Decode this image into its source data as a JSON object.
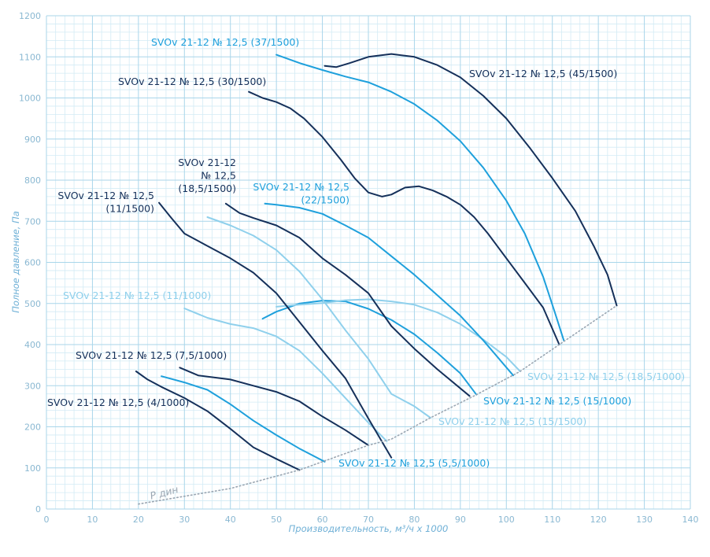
{
  "chart_data": {
    "type": "line",
    "x_label": "Производительность, м³/ч х 1000",
    "y_label": "Полное давление, Па",
    "xlim": [
      0,
      140
    ],
    "xticks": [
      0,
      10,
      20,
      30,
      40,
      50,
      60,
      70,
      80,
      90,
      100,
      110,
      120,
      130,
      140
    ],
    "ylim": [
      0,
      1200
    ],
    "yticks": [
      0,
      100,
      200,
      300,
      400,
      500,
      600,
      700,
      800,
      900,
      1000,
      1100,
      1200
    ],
    "grid": true,
    "series": [
      {
        "name": "SVOv 21-12 № 12,5 (4/1000)",
        "color": "#15305a",
        "x": [
          19.5,
          22,
          25,
          30,
          35,
          40,
          45,
          50,
          55
        ],
        "values": [
          335,
          315,
          297,
          270,
          238,
          195,
          150,
          122,
          95
        ]
      },
      {
        "name": "SVOv 21-12 № 12,5 (5,5/1000)",
        "color": "#1ea0dc",
        "x": [
          25,
          30,
          35,
          40,
          45,
          50,
          55,
          60.5
        ],
        "values": [
          323,
          308,
          290,
          255,
          215,
          180,
          147,
          115
        ]
      },
      {
        "name": "SVOv 21-12 № 12,5 (7,5/1000)",
        "color": "#15305a",
        "x": [
          29,
          33,
          40,
          45,
          50,
          55,
          60,
          65,
          70
        ],
        "values": [
          344,
          325,
          315,
          300,
          285,
          262,
          225,
          192,
          155
        ]
      },
      {
        "name": "SVOv 21-12 № 12,5 (11/1000)",
        "color": "#8fd0ec",
        "x": [
          30,
          35,
          40,
          45,
          50,
          55,
          60,
          65,
          70,
          74
        ],
        "values": [
          488,
          465,
          450,
          440,
          420,
          385,
          330,
          270,
          210,
          165
        ]
      },
      {
        "name": "SVOv 21-12 № 12,5 (15/1000)",
        "color": "#1ea0dc",
        "x": [
          47,
          50,
          55,
          60,
          65,
          70,
          75,
          80,
          85,
          90,
          93.5
        ],
        "values": [
          463,
          480,
          500,
          507,
          505,
          487,
          460,
          425,
          380,
          330,
          278
        ]
      },
      {
        "name": "SVOv 21-12 № 12,5 (18,5/1000)",
        "color": "#8fd0ec",
        "x": [
          50,
          55,
          60,
          65,
          70,
          75,
          80,
          85,
          90,
          95,
          100,
          103
        ],
        "values": [
          492,
          497,
          501,
          508,
          510,
          505,
          497,
          478,
          450,
          412,
          370,
          335
        ]
      },
      {
        "name": [
          "SVOv 21-12 № 12,5",
          "(11/1500)"
        ],
        "color": "#15305a",
        "x": [
          24.5,
          27,
          30,
          35,
          40,
          45,
          50,
          55,
          60,
          65,
          70,
          75
        ],
        "values": [
          745,
          710,
          670,
          640,
          610,
          575,
          525,
          455,
          385,
          318,
          220,
          125
        ]
      },
      {
        "name": "SVOv 21-12 № 12,5 (15/1500)",
        "color": "#8fd0ec",
        "x": [
          35,
          40,
          45,
          50,
          55,
          60,
          65,
          70,
          75,
          80,
          83.5
        ],
        "values": [
          710,
          690,
          665,
          630,
          578,
          510,
          435,
          365,
          280,
          250,
          222
        ]
      },
      {
        "name": [
          "SVOv 21-12",
          "№ 12,5",
          "(18,5/1500)"
        ],
        "color": "#15305a",
        "x": [
          39,
          42,
          45,
          50,
          55,
          60,
          65,
          70,
          75,
          80,
          85,
          92
        ],
        "values": [
          743,
          720,
          708,
          690,
          660,
          610,
          570,
          525,
          445,
          390,
          340,
          275
        ]
      },
      {
        "name": [
          "SVOv 21-12 № 12,5",
          "(22/1500)"
        ],
        "color": "#1ea0dc",
        "x": [
          47.5,
          50,
          55,
          60,
          65,
          70,
          75,
          80,
          85,
          90,
          95,
          101.5
        ],
        "values": [
          743,
          740,
          733,
          718,
          690,
          660,
          615,
          570,
          520,
          470,
          410,
          325
        ]
      },
      {
        "name": "SVOv 21-12 № 12,5 (30/1500)",
        "color": "#15305a",
        "x": [
          44,
          47,
          50,
          53,
          56,
          60,
          64,
          67,
          70,
          73,
          75,
          78,
          81,
          84,
          87,
          90,
          93,
          96,
          100,
          104,
          108,
          111.5
        ],
        "values": [
          1015,
          1000,
          990,
          975,
          950,
          905,
          850,
          805,
          770,
          760,
          765,
          782,
          785,
          775,
          760,
          740,
          710,
          670,
          610,
          550,
          490,
          400
        ]
      },
      {
        "name": "SVOv 21-12 № 12,5 (37/1500)",
        "color": "#1ea0dc",
        "x": [
          50,
          55,
          60,
          65,
          70,
          75,
          80,
          85,
          90,
          95,
          100,
          104,
          108,
          110.5,
          112.5
        ],
        "values": [
          1105,
          1085,
          1068,
          1052,
          1038,
          1015,
          985,
          945,
          895,
          830,
          750,
          670,
          565,
          480,
          410
        ]
      },
      {
        "name": "SVOv 21-12 № 12,5 (45/1500)",
        "color": "#15305a",
        "x": [
          60.5,
          63,
          66,
          70,
          75,
          80,
          85,
          90,
          95,
          100,
          105,
          110,
          115,
          119,
          122,
          124
        ],
        "values": [
          1078,
          1075,
          1085,
          1100,
          1107,
          1100,
          1080,
          1050,
          1005,
          950,
          880,
          805,
          725,
          640,
          570,
          495
        ]
      },
      {
        "name": "Р дин",
        "color": "#9aa6b2",
        "style": "dotted",
        "x": [
          20,
          40,
          55,
          60,
          70,
          75,
          83.5,
          93.5,
          103,
          111.5,
          124
        ],
        "values": [
          12,
          50,
          95,
          115,
          155,
          170,
          222,
          278,
          335,
          400,
          495
        ]
      }
    ]
  }
}
